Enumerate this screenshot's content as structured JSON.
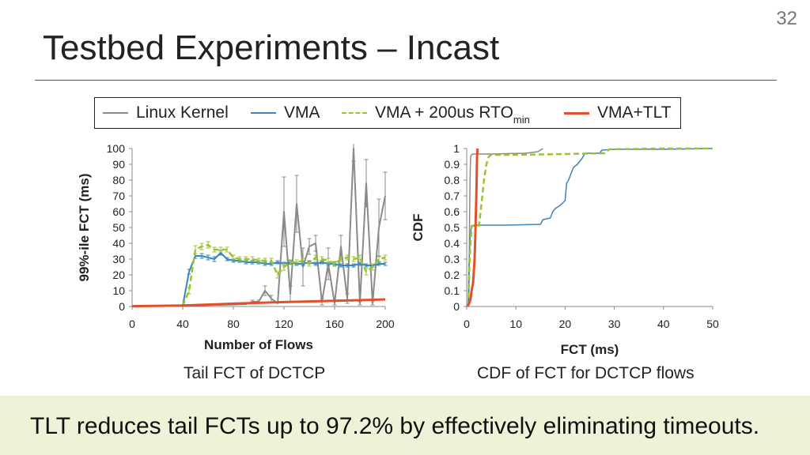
{
  "slide": {
    "number": "32",
    "title": "Testbed Experiments – Incast",
    "banner": "TLT reduces tail FCTs up to 97.2% by effectively eliminating timeouts.",
    "colors": {
      "linux": "#8a8a8a",
      "vma": "#3a85bd",
      "vma_rto": "#9ac42f",
      "tlt": "#e2502a",
      "banner_bg": "#eef3d8"
    }
  },
  "legend": {
    "items": [
      {
        "label": "Linux Kernel",
        "color": "#8a8a8a",
        "style": "solid"
      },
      {
        "label": "VMA",
        "color": "#3a85bd",
        "style": "solid"
      },
      {
        "label": "VMA + 200us RTO",
        "sub": "min",
        "color": "#9ac42f",
        "style": "dashed"
      },
      {
        "label": "VMA+TLT",
        "color": "#e2502a",
        "style": "solid"
      }
    ]
  },
  "captions": {
    "left": "Tail FCT of DCTCP",
    "right": "CDF of FCT for DCTCP flows"
  },
  "chart_data": [
    {
      "type": "line",
      "title": "Tail FCT of DCTCP",
      "xlabel": "Number of Flows",
      "ylabel": "99%-ile FCT (ms)",
      "xlim": [
        0,
        200
      ],
      "ylim": [
        0,
        100
      ],
      "xticks": [
        "0",
        "40",
        "80",
        "120",
        "160",
        "200"
      ],
      "yticks": [
        "0",
        "10",
        "20",
        "30",
        "40",
        "50",
        "60",
        "70",
        "80",
        "90",
        "100"
      ],
      "series": [
        {
          "name": "Linux Kernel",
          "color": "#8a8a8a",
          "style": "solid",
          "width": 2,
          "x": [
            40,
            45,
            50,
            55,
            60,
            65,
            70,
            75,
            80,
            85,
            90,
            95,
            100,
            105,
            110,
            115,
            120,
            125,
            130,
            135,
            140,
            145,
            150,
            155,
            160,
            165,
            170,
            175,
            180,
            185,
            190,
            195,
            200
          ],
          "y": [
            0.5,
            0.6,
            0.7,
            0.8,
            0.9,
            1.0,
            1.0,
            1.1,
            1.2,
            1.4,
            1.5,
            3,
            3,
            10,
            5,
            2,
            60,
            8,
            65,
            25,
            38,
            40,
            3,
            27,
            2,
            38,
            5,
            100,
            2,
            78,
            2,
            50,
            70
          ],
          "err": [
            0,
            0,
            0,
            0,
            0,
            0,
            0,
            0,
            0,
            0,
            0,
            1,
            1,
            3,
            2,
            0,
            22,
            5,
            18,
            12,
            5,
            5,
            2,
            10,
            1,
            7,
            3,
            8,
            1,
            15,
            1,
            18,
            15
          ]
        },
        {
          "name": "VMA",
          "color": "#3a85bd",
          "style": "solid",
          "width": 2,
          "x": [
            40,
            45,
            50,
            55,
            60,
            65,
            70,
            75,
            80,
            85,
            90,
            95,
            100,
            105,
            110,
            115,
            120,
            125,
            130,
            135,
            140,
            145,
            150,
            155,
            160,
            165,
            170,
            175,
            180,
            185,
            190,
            195,
            200
          ],
          "y": [
            0.5,
            22,
            32,
            32,
            31,
            30,
            34,
            30,
            29,
            29,
            28,
            28,
            28,
            27,
            27,
            28,
            27,
            28,
            27,
            27,
            28,
            27,
            28,
            27,
            27,
            26,
            26,
            26,
            27,
            26,
            26,
            27,
            27
          ],
          "err": [
            0,
            1.5,
            1.5,
            1.5,
            1.5,
            1.5,
            1.5,
            1,
            1,
            1,
            1,
            1,
            1,
            1,
            1,
            1,
            1,
            1,
            1,
            1,
            1,
            1,
            1,
            1,
            1,
            1,
            1,
            1,
            1,
            1,
            1,
            1,
            1
          ]
        },
        {
          "name": "VMA + 200us RTOmin",
          "color": "#9ac42f",
          "style": "dashed",
          "width": 2.5,
          "x": [
            40,
            45,
            50,
            55,
            60,
            65,
            70,
            75,
            80,
            85,
            90,
            95,
            100,
            105,
            110,
            115,
            120,
            125,
            130,
            135,
            140,
            145,
            150,
            155,
            160,
            165,
            170,
            175,
            180,
            185,
            190,
            195,
            200
          ],
          "y": [
            0.5,
            10,
            36,
            38,
            39,
            36,
            36,
            36,
            31,
            30,
            30,
            30,
            29,
            29,
            29,
            20,
            25,
            28,
            28,
            29,
            27,
            31,
            30,
            29,
            27,
            30,
            31,
            30,
            31,
            22,
            25,
            30,
            31
          ],
          "err": [
            0,
            2,
            2.5,
            2,
            2,
            1.5,
            1.5,
            1.5,
            1.5,
            1.5,
            1.5,
            1.5,
            1.5,
            1.5,
            1.5,
            2,
            2,
            1.5,
            1.5,
            1.5,
            1.5,
            1.5,
            1.5,
            1.5,
            1.5,
            1.5,
            1.5,
            1.5,
            1.5,
            2,
            2,
            1.5,
            1.5
          ]
        },
        {
          "name": "VMA+TLT",
          "color": "#e2502a",
          "style": "solid",
          "width": 3,
          "x": [
            0,
            40,
            60,
            80,
            100,
            120,
            140,
            160,
            180,
            200
          ],
          "y": [
            0.2,
            0.6,
            1.2,
            1.8,
            2.3,
            2.8,
            3.2,
            3.6,
            4.0,
            4.5
          ]
        }
      ]
    },
    {
      "type": "line",
      "title": "CDF of FCT for DCTCP flows",
      "xlabel": "FCT (ms)",
      "ylabel": "CDF",
      "xlim": [
        0,
        50
      ],
      "ylim": [
        0,
        1
      ],
      "xticks": [
        "0",
        "10",
        "20",
        "30",
        "40",
        "50"
      ],
      "yticks": [
        "0",
        "0.1",
        "0.2",
        "0.3",
        "0.4",
        "0.5",
        "0.6",
        "0.7",
        "0.8",
        "0.9",
        "1"
      ],
      "series": [
        {
          "name": "Linux Kernel",
          "color": "#8a8a8a",
          "style": "solid",
          "width": 1.5,
          "x": [
            0.4,
            0.5,
            0.6,
            0.7,
            0.8,
            1.0,
            1.2,
            5,
            12,
            14.5,
            15.5
          ],
          "y": [
            0,
            0.2,
            0.6,
            0.85,
            0.95,
            0.96,
            0.965,
            0.965,
            0.97,
            0.98,
            1.0
          ]
        },
        {
          "name": "VMA",
          "color": "#3a85bd",
          "style": "solid",
          "width": 1.5,
          "x": [
            0.3,
            0.5,
            0.7,
            1.0,
            1.5,
            3,
            8,
            15,
            15.5,
            17,
            17.5,
            18,
            19,
            20,
            20.3,
            20.7,
            21.3,
            21.7,
            22.5,
            23,
            23.5,
            24,
            27,
            27.5,
            30,
            40,
            50
          ],
          "y": [
            0,
            0.3,
            0.45,
            0.51,
            0.515,
            0.515,
            0.515,
            0.52,
            0.55,
            0.56,
            0.6,
            0.62,
            0.64,
            0.67,
            0.78,
            0.8,
            0.85,
            0.88,
            0.9,
            0.92,
            0.94,
            0.97,
            0.97,
            0.99,
            0.995,
            0.995,
            1.0
          ]
        },
        {
          "name": "VMA + 200us RTOmin",
          "color": "#9ac42f",
          "style": "dashed",
          "width": 2.5,
          "x": [
            0.3,
            0.6,
            1.0,
            2.5,
            3.0,
            3.5,
            4.0,
            4.5,
            5,
            10,
            20,
            28,
            29,
            40,
            50
          ],
          "y": [
            0,
            0.3,
            0.51,
            0.51,
            0.65,
            0.8,
            0.9,
            0.95,
            0.96,
            0.96,
            0.965,
            0.97,
            0.995,
            1.0,
            1.0
          ]
        },
        {
          "name": "VMA+TLT",
          "color": "#e2502a",
          "style": "solid",
          "width": 3,
          "x": [
            0.2,
            0.5,
            0.8,
            1.0,
            1.3,
            1.6,
            1.8,
            2.0,
            2.1,
            2.2
          ],
          "y": [
            0,
            0.02,
            0.05,
            0.1,
            0.15,
            0.3,
            0.5,
            0.75,
            0.95,
            1.0
          ]
        }
      ]
    }
  ]
}
